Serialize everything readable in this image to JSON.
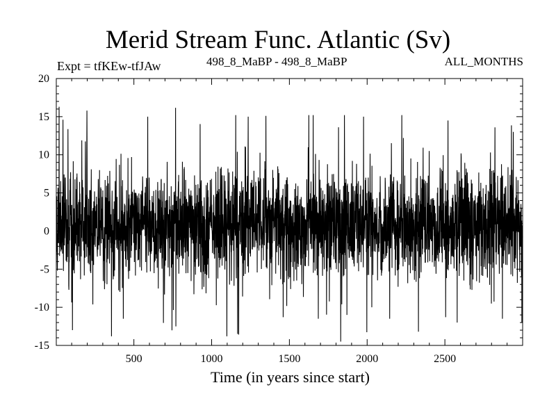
{
  "header": {
    "title": "Merid Stream Func. Atlantic (Sv)",
    "experiment": "Expt = tfKEw-tfJAw",
    "period": "498_8_MaBP - 498_8_MaBP",
    "season": "ALL_MONTHS"
  },
  "chart_data": {
    "type": "line",
    "xlabel": "Time (in years since start)",
    "ylabel": "",
    "xlim": [
      1,
      3000
    ],
    "ylim": [
      -15,
      20
    ],
    "xticks": [
      500,
      1000,
      1500,
      2000,
      2500
    ],
    "yticks": [
      -15,
      -10,
      -5,
      0,
      5,
      10,
      15,
      20
    ],
    "grid": false,
    "line_color": "#000000",
    "series": [
      {
        "mean": 0.8,
        "typical_range": [
          -5,
          7
        ],
        "max": 16.3,
        "min": -14.5,
        "points": [
          [
            19,
            16.3
          ],
          [
            44,
            14.6
          ],
          [
            105,
            -13.0
          ],
          [
            198,
            15.8
          ],
          [
            356,
            -13.8
          ],
          [
            432,
            -11.5
          ],
          [
            589,
            15.0
          ],
          [
            770,
            -12.5
          ],
          [
            1098,
            -13.8
          ],
          [
            1155,
            15.2
          ],
          [
            1167,
            -13.5
          ],
          [
            1235,
            15.0
          ],
          [
            1349,
            15.1
          ],
          [
            1460,
            -11.3
          ],
          [
            1625,
            15.2
          ],
          [
            1653,
            15.2
          ],
          [
            1686,
            -11.5
          ],
          [
            1830,
            -14.5
          ],
          [
            1854,
            15.2
          ],
          [
            1870,
            -11.0
          ],
          [
            1977,
            15.0
          ],
          [
            2030,
            -10.0
          ],
          [
            2145,
            -11.5
          ],
          [
            2223,
            15.2
          ],
          [
            2330,
            -13.2
          ],
          [
            2505,
            -11.3
          ],
          [
            2520,
            14.5
          ],
          [
            2579,
            -12.0
          ],
          [
            2822,
            13.6
          ],
          [
            2870,
            -11.5
          ],
          [
            2940,
            13.0
          ],
          [
            2995,
            -12.0
          ]
        ]
      }
    ]
  }
}
